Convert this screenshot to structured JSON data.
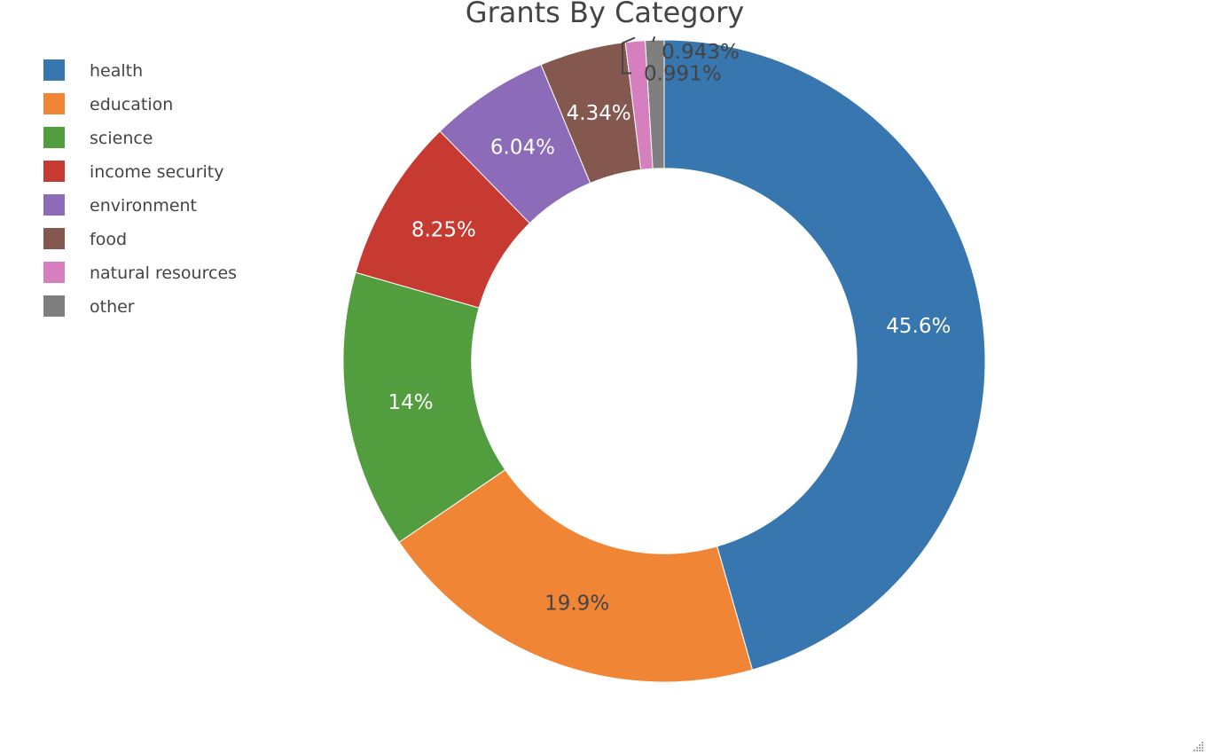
{
  "chart_data": {
    "type": "pie",
    "hole": 0.6,
    "title": "Grants By Category",
    "categories": [
      "health",
      "education",
      "science",
      "income security",
      "environment",
      "food",
      "natural resources",
      "other"
    ],
    "values": [
      45.6,
      19.9,
      14,
      8.25,
      6.04,
      4.34,
      0.991,
      0.943
    ],
    "labels": [
      "45.6%",
      "19.9%",
      "14%",
      "8.25%",
      "6.04%",
      "4.34%",
      "0.991%",
      "0.943%"
    ],
    "colors": [
      "#3776ae",
      "#f08536",
      "#529e3e",
      "#c63a32",
      "#8c6cb9",
      "#84584e",
      "#d67fbf",
      "#7f7f7f"
    ],
    "label_colors": [
      "#ffffff",
      "#444444",
      "#ffffff",
      "#ffffff",
      "#ffffff",
      "#ffffff",
      "#444444",
      "#444444"
    ],
    "direction": "clockwise",
    "start_angle": "12 o'clock",
    "legend_position": "top-left"
  }
}
